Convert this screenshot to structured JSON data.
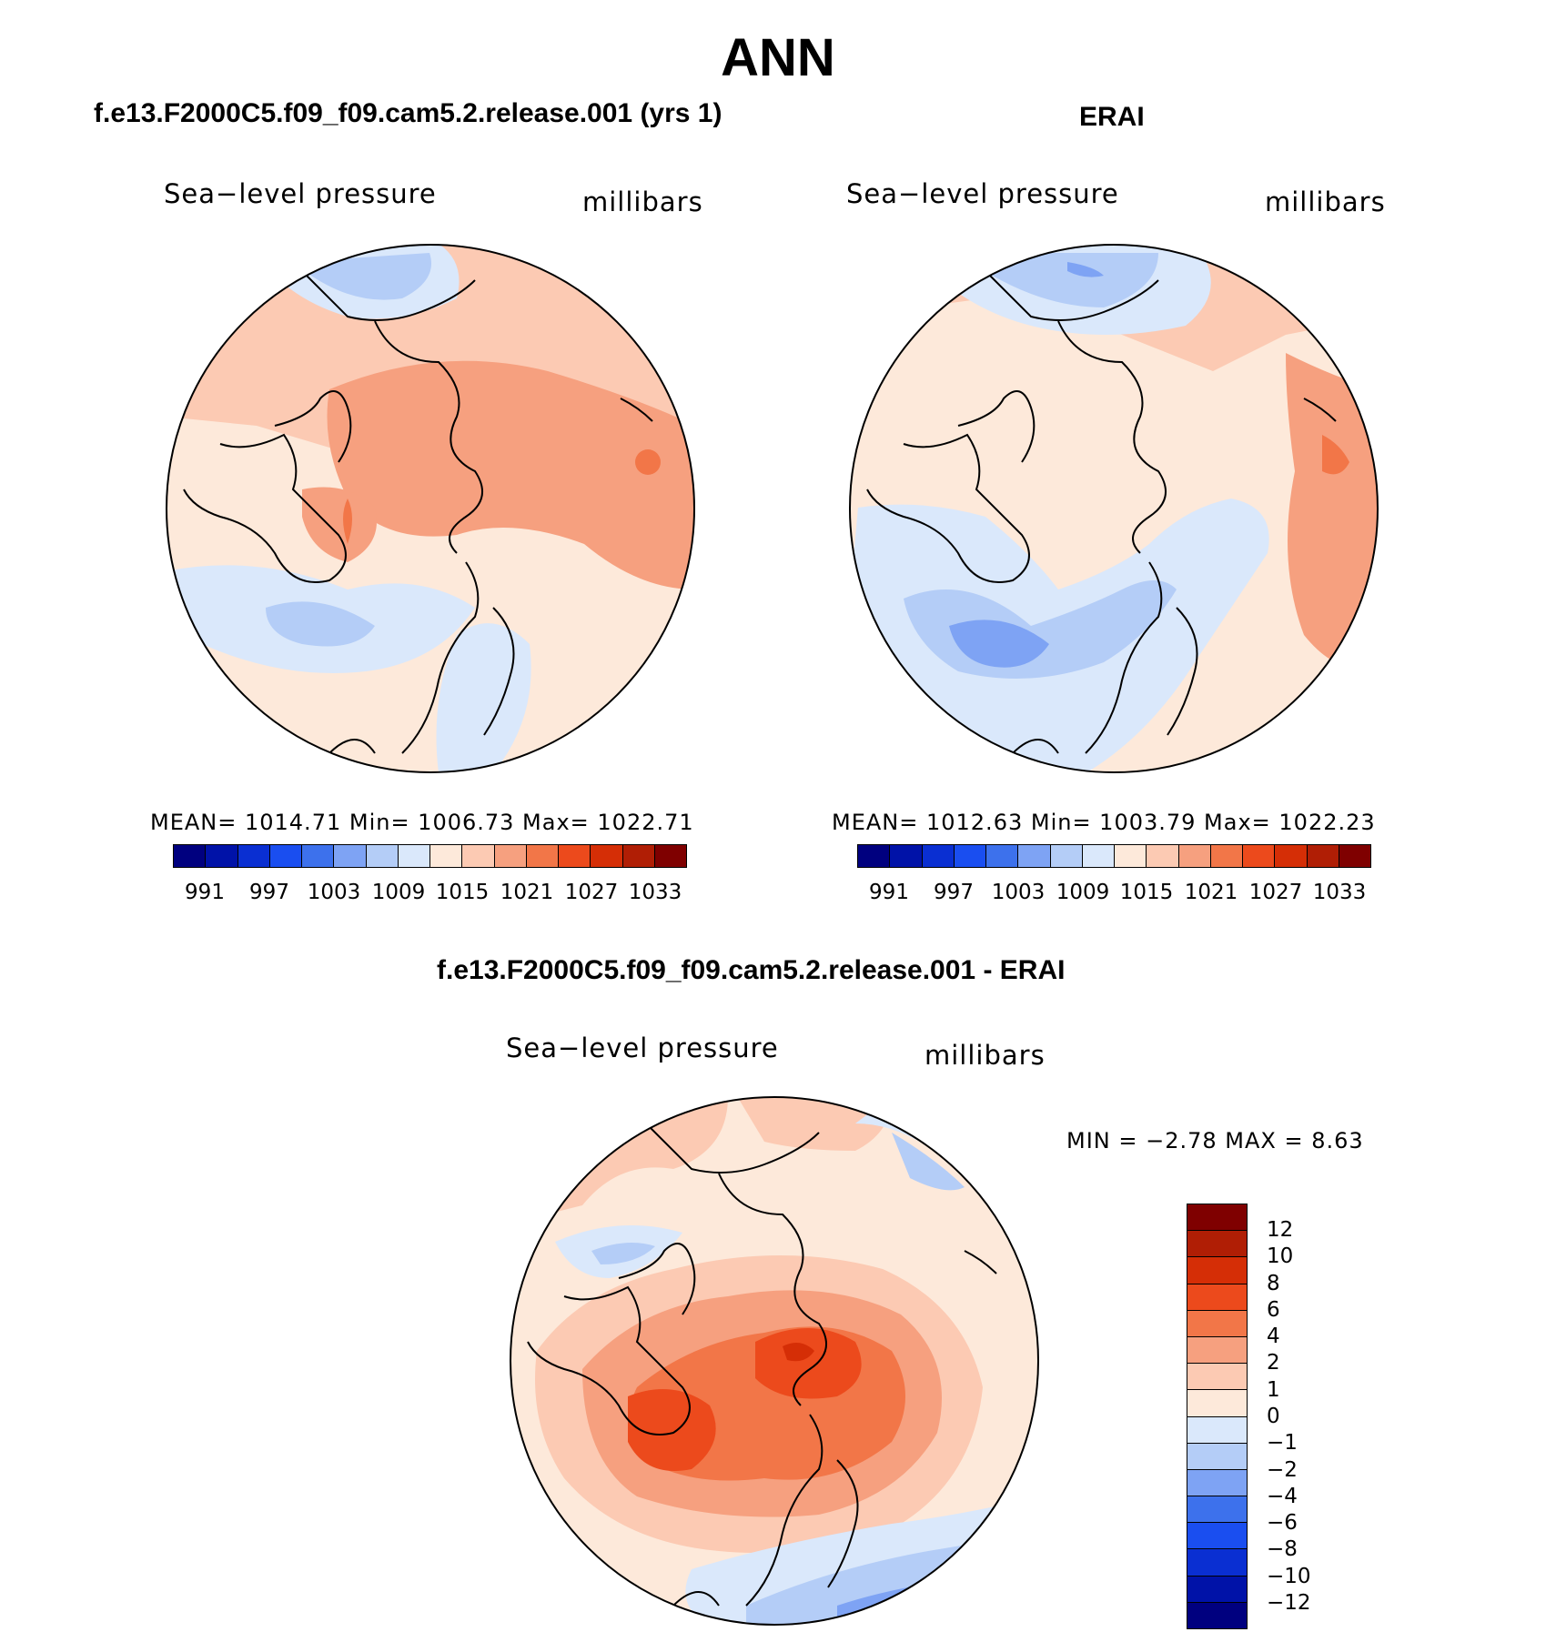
{
  "main_title": "ANN",
  "colors": {
    "abs_scale": [
      "#00007f",
      "#0012a8",
      "#0a2fd2",
      "#1a4ef0",
      "#3d71ec",
      "#7ea3f4",
      "#b4cdf7",
      "#dae8fb",
      "#fde9da",
      "#fccab3",
      "#f6a07f",
      "#f27648",
      "#ec4a1c",
      "#d52e06",
      "#b01e05",
      "#7f0000"
    ],
    "diff_scale": [
      "#00007f",
      "#0012a8",
      "#0a2fd2",
      "#1a4ef0",
      "#3d71ec",
      "#7ea3f4",
      "#b4cdf7",
      "#dae8fb",
      "#fde9da",
      "#fccab3",
      "#f6a07f",
      "#f27648",
      "#ec4a1c",
      "#d52e06",
      "#b01e05",
      "#7f0000"
    ]
  },
  "panels": {
    "model": {
      "title": "f.e13.F2000C5.f09_f09.cam5.2.release.001 (yrs 1)",
      "left_label": "Sea−level pressure",
      "right_label": "millibars",
      "stats": "MEAN=  1014.71    Min=  1006.73    Max=  1022.71",
      "ticks": [
        "991",
        "997",
        "1003",
        "1009",
        "1015",
        "1021",
        "1027",
        "1033"
      ]
    },
    "obs": {
      "title": "ERAI",
      "left_label": "Sea−level pressure",
      "right_label": "millibars",
      "stats": "MEAN=  1012.63    Min=  1003.79    Max=  1022.23",
      "ticks": [
        "991",
        "997",
        "1003",
        "1009",
        "1015",
        "1021",
        "1027",
        "1033"
      ]
    },
    "diff": {
      "title": "f.e13.F2000C5.f09_f09.cam5.2.release.001 - ERAI",
      "left_label": "Sea−level pressure",
      "right_label": "millibars",
      "stats": "MIN =    −2.78  MAX =      8.63",
      "ticks": [
        "12",
        "10",
        "8",
        "6",
        "4",
        "2",
        "1",
        "0",
        "−1",
        "−2",
        "−4",
        "−6",
        "−8",
        "−10",
        "−12"
      ]
    }
  }
}
